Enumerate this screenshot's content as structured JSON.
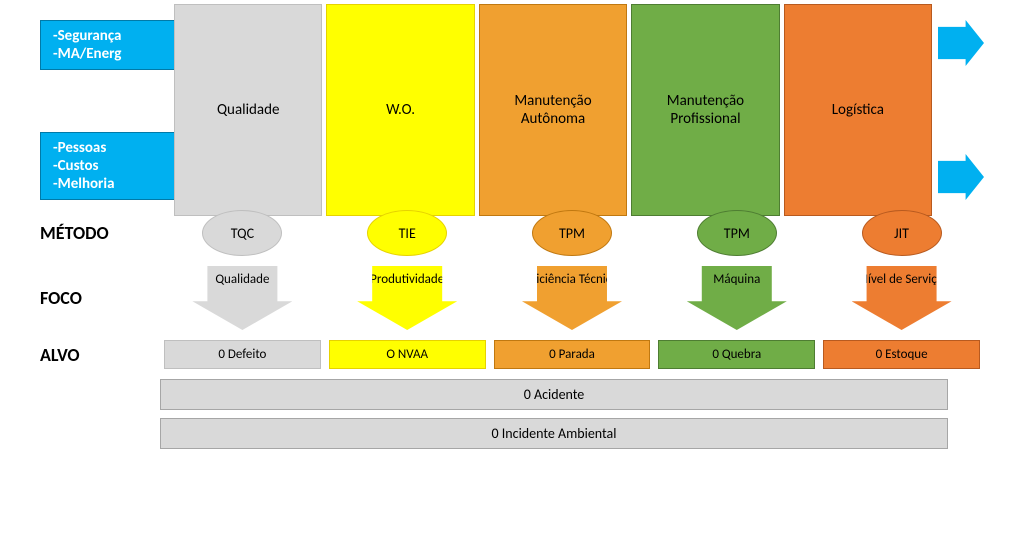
{
  "colors": {
    "blue": "#00b0f0",
    "grey": {
      "fill": "#d9d9d9",
      "border": "#bfbfbf",
      "text": "#000"
    },
    "yellow": {
      "fill": "#ffff00",
      "border": "#e6d200",
      "text": "#000"
    },
    "orange": {
      "fill": "#f0a030",
      "border": "#c07810",
      "text": "#fff"
    },
    "green": {
      "fill": "#70ad47",
      "border": "#4e7d32",
      "text": "#fff"
    },
    "deeporange": {
      "fill": "#ed7d31",
      "border": "#b85a1f",
      "text": "#fff"
    }
  },
  "inputs_top": [
    "-Segurança",
    "-MA/Energ"
  ],
  "inputs_bottom": [
    "-Pessoas",
    "-Custos",
    "-Melhoria"
  ],
  "pillars": [
    {
      "label": "Qualidade",
      "colorKey": "grey"
    },
    {
      "label": "W.O.",
      "colorKey": "yellow"
    },
    {
      "label": "Manutenção Autônoma",
      "colorKey": "orange"
    },
    {
      "label": "Manutenção Profissional",
      "colorKey": "green"
    },
    {
      "label": "Logística",
      "colorKey": "deeporange"
    }
  ],
  "labels": {
    "metodo": "MÉTODO",
    "foco": "FOCO",
    "alvo": "ALVO"
  },
  "metodo": [
    {
      "label": "TQC",
      "colorKey": "grey"
    },
    {
      "label": "TIE",
      "colorKey": "yellow"
    },
    {
      "label": "TPM",
      "colorKey": "orange"
    },
    {
      "label": "TPM",
      "colorKey": "green"
    },
    {
      "label": "JIT",
      "colorKey": "deeporange"
    }
  ],
  "foco": [
    {
      "label": "Qualidade",
      "colorKey": "grey"
    },
    {
      "label": "Produtividade",
      "colorKey": "yellow"
    },
    {
      "label": "Eficiência Técnica",
      "colorKey": "orange"
    },
    {
      "label": "Máquina",
      "colorKey": "green"
    },
    {
      "label": "Nível de Serviço",
      "colorKey": "deeporange"
    }
  ],
  "alvo": [
    {
      "label": "0 Defeito",
      "colorKey": "grey"
    },
    {
      "label": "O NVAA",
      "colorKey": "yellow"
    },
    {
      "label": "0 Parada",
      "colorKey": "orange"
    },
    {
      "label": "0  Quebra",
      "colorKey": "green"
    },
    {
      "label": "0  Estoque",
      "colorKey": "deeporange"
    }
  ],
  "alvo_bars": [
    "0 Acidente",
    "0 Incidente Ambiental"
  ]
}
